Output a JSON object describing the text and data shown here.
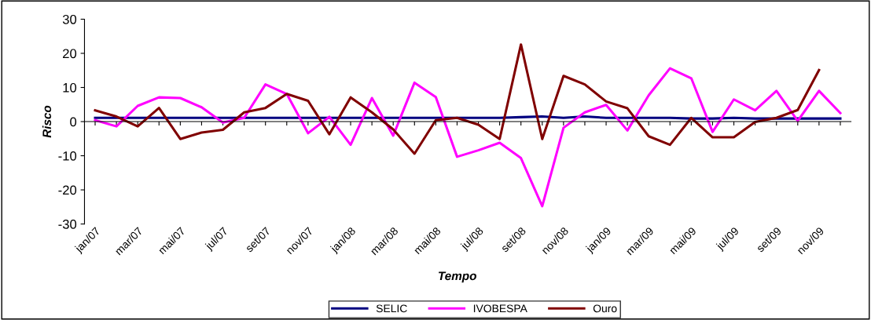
{
  "chart_data": {
    "type": "line",
    "xlabel": "Tempo",
    "ylabel": "Risco",
    "categories": [
      "jan/07",
      null,
      "mar/07",
      null,
      "mai/07",
      null,
      "jul/07",
      null,
      "set/07",
      null,
      "nov/07",
      null,
      "jan/08",
      null,
      "mar/08",
      null,
      "mai/08",
      null,
      "jul/08",
      null,
      "set/08",
      null,
      "nov/08",
      null,
      "jan/09",
      null,
      "mar/09",
      null,
      "mai/09",
      null,
      "jul/09",
      null,
      "set/09",
      null,
      "nov/09",
      null
    ],
    "series": [
      {
        "name": "SELIC",
        "color": "#000080",
        "values": [
          1.1,
          1.1,
          1.1,
          1.1,
          1.1,
          1.1,
          1.1,
          1.1,
          1.1,
          1.1,
          1.1,
          1.1,
          1.1,
          1.1,
          1.1,
          1.1,
          1.1,
          1.1,
          1.1,
          1.1,
          1.3,
          1.5,
          1.1,
          1.5,
          1.1,
          1.1,
          1.1,
          1.1,
          0.9,
          0.9,
          1.1,
          0.9,
          0.9,
          0.9,
          0.9,
          0.9
        ]
      },
      {
        "name": "IVOBESPA",
        "color": "#ff00ff",
        "values": [
          0.4,
          -1.4,
          4.6,
          7.1,
          6.9,
          4.2,
          -0.3,
          1.1,
          10.9,
          8.1,
          -3.4,
          1.4,
          -6.8,
          6.9,
          -4.1,
          11.4,
          7.2,
          -10.3,
          -8.4,
          -6.2,
          -10.7,
          -24.8,
          -1.8,
          2.7,
          4.9,
          -2.6,
          7.7,
          15.6,
          12.7,
          -3.0,
          6.5,
          3.3,
          9.0,
          0.2,
          9.0,
          2.5
        ]
      },
      {
        "name": "Ouro",
        "color": "#800000",
        "values": [
          3.3,
          1.5,
          -1.4,
          4.0,
          -5.1,
          -3.2,
          -2.4,
          2.7,
          4.0,
          8.1,
          6.1,
          -3.7,
          7.1,
          2.7,
          -2.3,
          -9.4,
          0.4,
          1.1,
          -0.9,
          -5.1,
          22.6,
          -5.1,
          13.4,
          10.9,
          5.9,
          3.9,
          -4.3,
          -6.8,
          1.1,
          -4.6,
          -4.6,
          -0.1,
          1.1,
          3.4,
          15.1,
          null
        ]
      }
    ],
    "ylim": [
      -30,
      30
    ],
    "yticks": [
      -30,
      -20,
      -10,
      0,
      10,
      20,
      30
    ],
    "legend": "bottom",
    "marker": "none",
    "line_style": "solid"
  }
}
